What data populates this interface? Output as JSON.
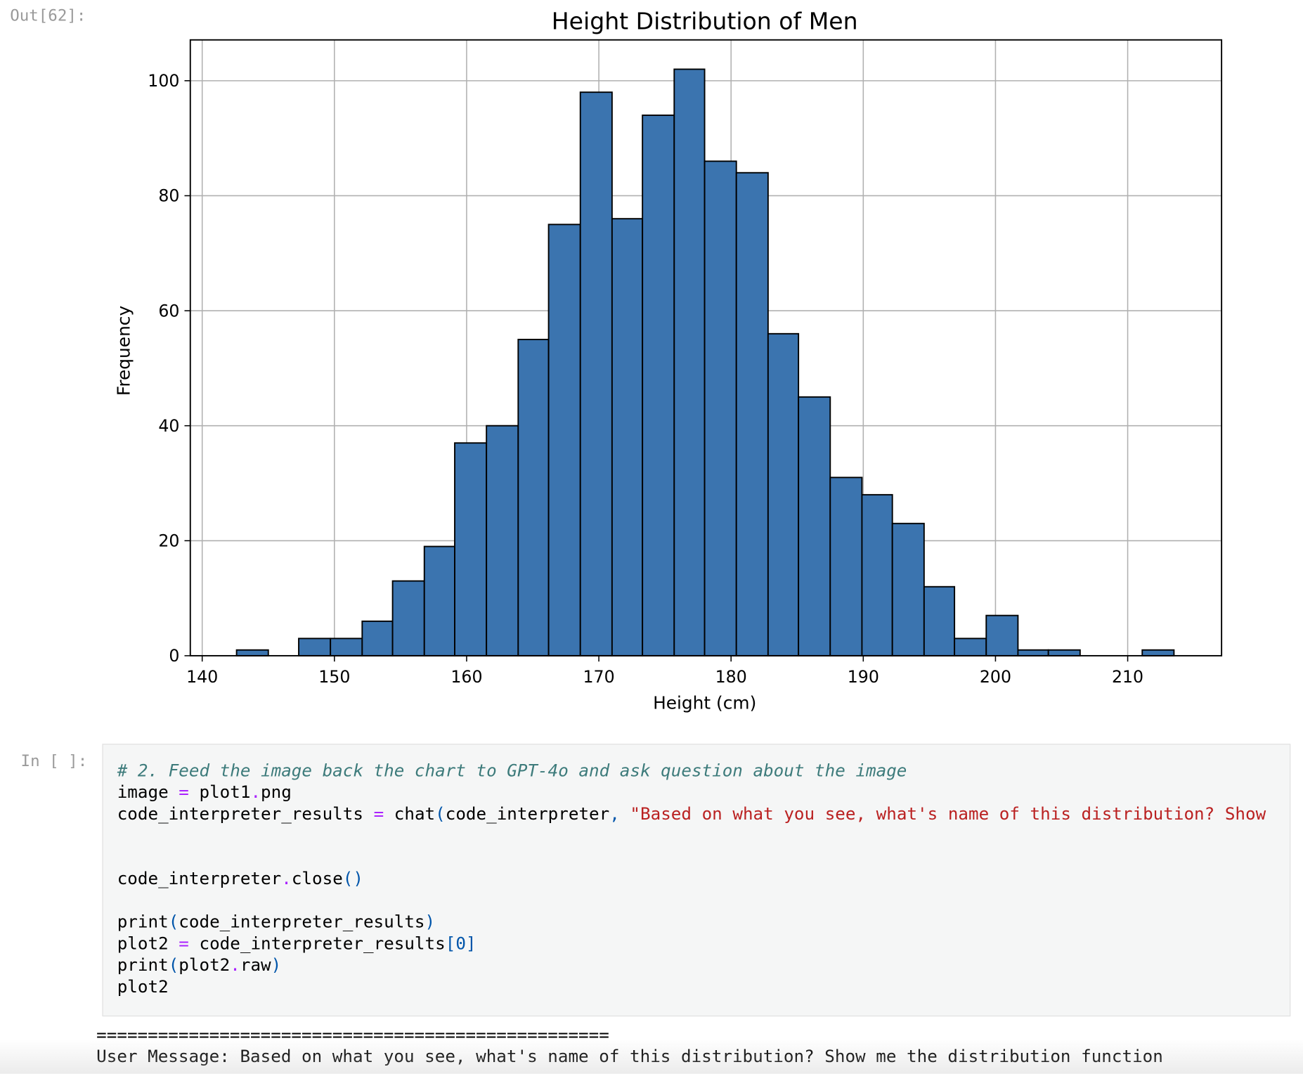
{
  "out_prompt": "Out[62]:",
  "chart_data": {
    "type": "histogram",
    "title": "Height Distribution of Men",
    "x_label": "Height (cm)",
    "y_label": "Frequency",
    "bins": [
      142.6,
      145.0,
      147.3,
      149.7,
      152.1,
      154.4,
      156.8,
      159.1,
      161.5,
      163.9,
      166.2,
      168.6,
      171.0,
      173.3,
      175.7,
      178.0,
      180.4,
      182.8,
      185.1,
      187.5,
      189.9,
      192.2,
      194.6,
      196.9,
      199.3,
      201.7,
      204.0,
      206.4,
      208.8,
      211.1,
      213.5
    ],
    "values": [
      1,
      0,
      3,
      3,
      6,
      13,
      19,
      37,
      40,
      55,
      75,
      98,
      76,
      94,
      102,
      86,
      84,
      56,
      45,
      31,
      28,
      23,
      12,
      3,
      7,
      1,
      1,
      0,
      0,
      1
    ],
    "color": "#3b74af",
    "edgecolor": "#000000",
    "xlim": [
      139.1,
      217.1
    ],
    "ylim": [
      0,
      107.1
    ],
    "xticks": [
      140,
      150,
      160,
      170,
      180,
      190,
      200,
      210
    ],
    "yticks": [
      0,
      20,
      40,
      60,
      80,
      100
    ],
    "grid": true
  },
  "in_prompt": "In [ ]:",
  "code_lines": [
    [
      {
        "text": "# 2. Feed the image back the chart to GPT-4o and ask question about the image",
        "color": "#3d7b7b",
        "italic": true
      }
    ],
    [
      {
        "text": "image ",
        "color": "#000000"
      },
      {
        "text": "=",
        "color": "#aa22ff"
      },
      {
        "text": " plot1",
        "color": "#000000"
      },
      {
        "text": ".",
        "color": "#aa22ff"
      },
      {
        "text": "png",
        "color": "#000000"
      }
    ],
    [
      {
        "text": "code_interpreter_results ",
        "color": "#000000"
      },
      {
        "text": "=",
        "color": "#aa22ff"
      },
      {
        "text": " chat",
        "color": "#000000"
      },
      {
        "text": "(",
        "color": "#0055aa"
      },
      {
        "text": "code_interpreter",
        "color": "#000000"
      },
      {
        "text": ",",
        "color": "#0055aa"
      },
      {
        "text": " \"Based on what you see, what's name of this distribution? Show",
        "color": "#ba2121"
      }
    ],
    [],
    [],
    [
      {
        "text": "code_interpreter",
        "color": "#000000"
      },
      {
        "text": ".",
        "color": "#aa22ff"
      },
      {
        "text": "close",
        "color": "#000000"
      },
      {
        "text": "()",
        "color": "#0055aa"
      }
    ],
    [],
    [
      {
        "text": "print",
        "color": "#000000"
      },
      {
        "text": "(",
        "color": "#0055aa"
      },
      {
        "text": "code_interpreter_results",
        "color": "#000000"
      },
      {
        "text": ")",
        "color": "#0055aa"
      }
    ],
    [
      {
        "text": "plot2 ",
        "color": "#000000"
      },
      {
        "text": "=",
        "color": "#aa22ff"
      },
      {
        "text": " code_interpreter_results",
        "color": "#000000"
      },
      {
        "text": "[",
        "color": "#0055aa"
      },
      {
        "text": "0",
        "color": "#0055aa"
      },
      {
        "text": "]",
        "color": "#0055aa"
      }
    ],
    [
      {
        "text": "print",
        "color": "#000000"
      },
      {
        "text": "(",
        "color": "#0055aa"
      },
      {
        "text": "plot2",
        "color": "#000000"
      },
      {
        "text": ".",
        "color": "#aa22ff"
      },
      {
        "text": "raw",
        "color": "#000000"
      },
      {
        "text": ")",
        "color": "#0055aa"
      }
    ],
    [
      {
        "text": "plot2",
        "color": "#000000"
      }
    ]
  ],
  "output_lines": [
    "==================================================",
    "User Message: Based on what you see, what's name of this distribution? Show me the distribution function"
  ]
}
